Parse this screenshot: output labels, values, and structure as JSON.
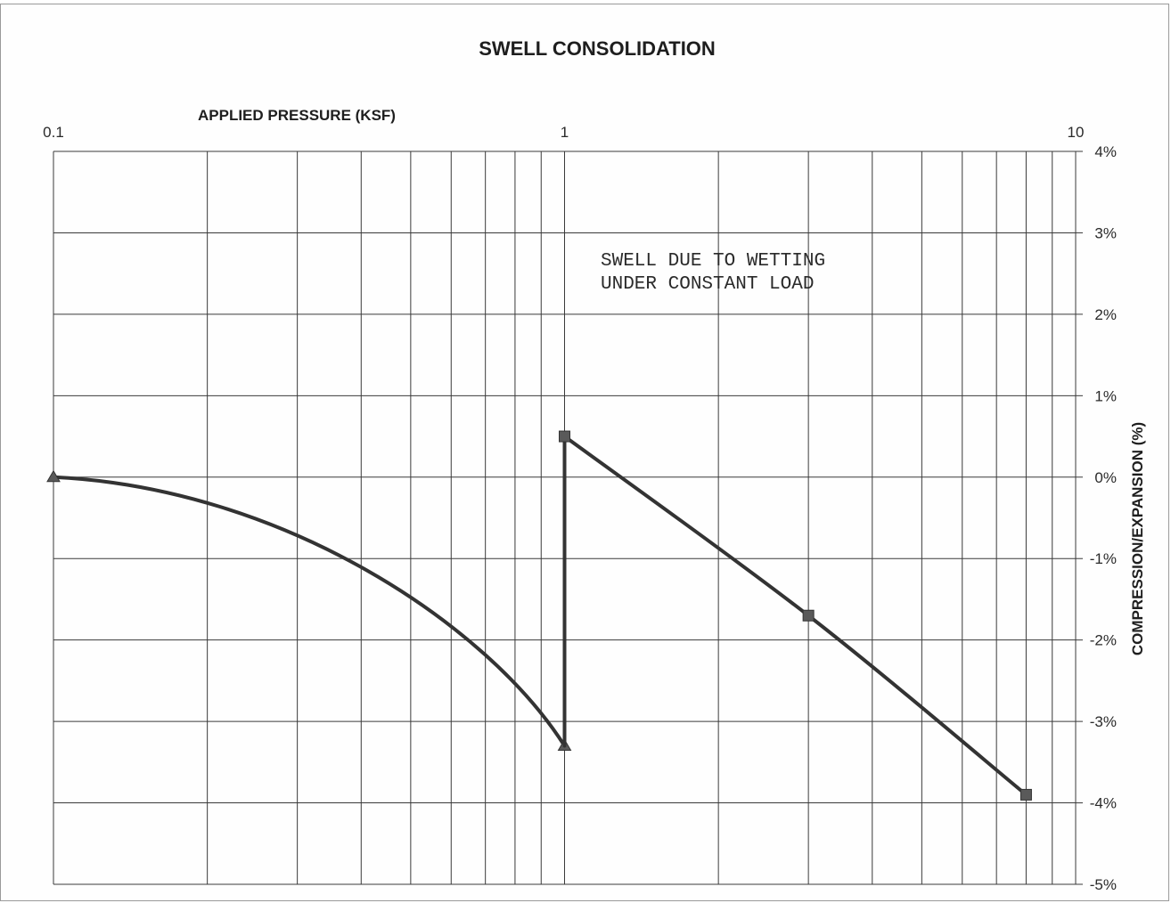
{
  "chart_data": {
    "type": "line",
    "title": "SWELL CONSOLIDATION",
    "xlabel": "APPLIED PRESSURE (KSF)",
    "ylabel": "COMPRESSION/EXPANSION (%)",
    "x_scale": "log",
    "xlim": [
      0.1,
      10
    ],
    "ylim": [
      -5,
      4
    ],
    "x_tick_labels": [
      "0.1",
      "1",
      "10"
    ],
    "x_ticks": [
      0.1,
      1,
      10
    ],
    "y_ticks": [
      4,
      3,
      2,
      1,
      0,
      -1,
      -2,
      -3,
      -4,
      -5
    ],
    "y_tick_labels": [
      "4%",
      "3%",
      "2%",
      "1%",
      "0%",
      "-1%",
      "-2%",
      "-3%",
      "-4%",
      "-5%"
    ],
    "grid": true,
    "annotation": [
      "SWELL DUE TO WETTING",
      "UNDER CONSTANT LOAD"
    ],
    "series": [
      {
        "marker": "triangle",
        "color": "#333333",
        "x": [
          0.1,
          1
        ],
        "y": [
          0.0,
          -3.3
        ]
      },
      {
        "marker": "line",
        "color": "#333333",
        "x": [
          1,
          1
        ],
        "y": [
          -3.3,
          0.5
        ]
      },
      {
        "marker": "square",
        "color": "#333333",
        "x": [
          1,
          3,
          8
        ],
        "y": [
          0.5,
          -1.7,
          -3.9
        ]
      }
    ]
  }
}
